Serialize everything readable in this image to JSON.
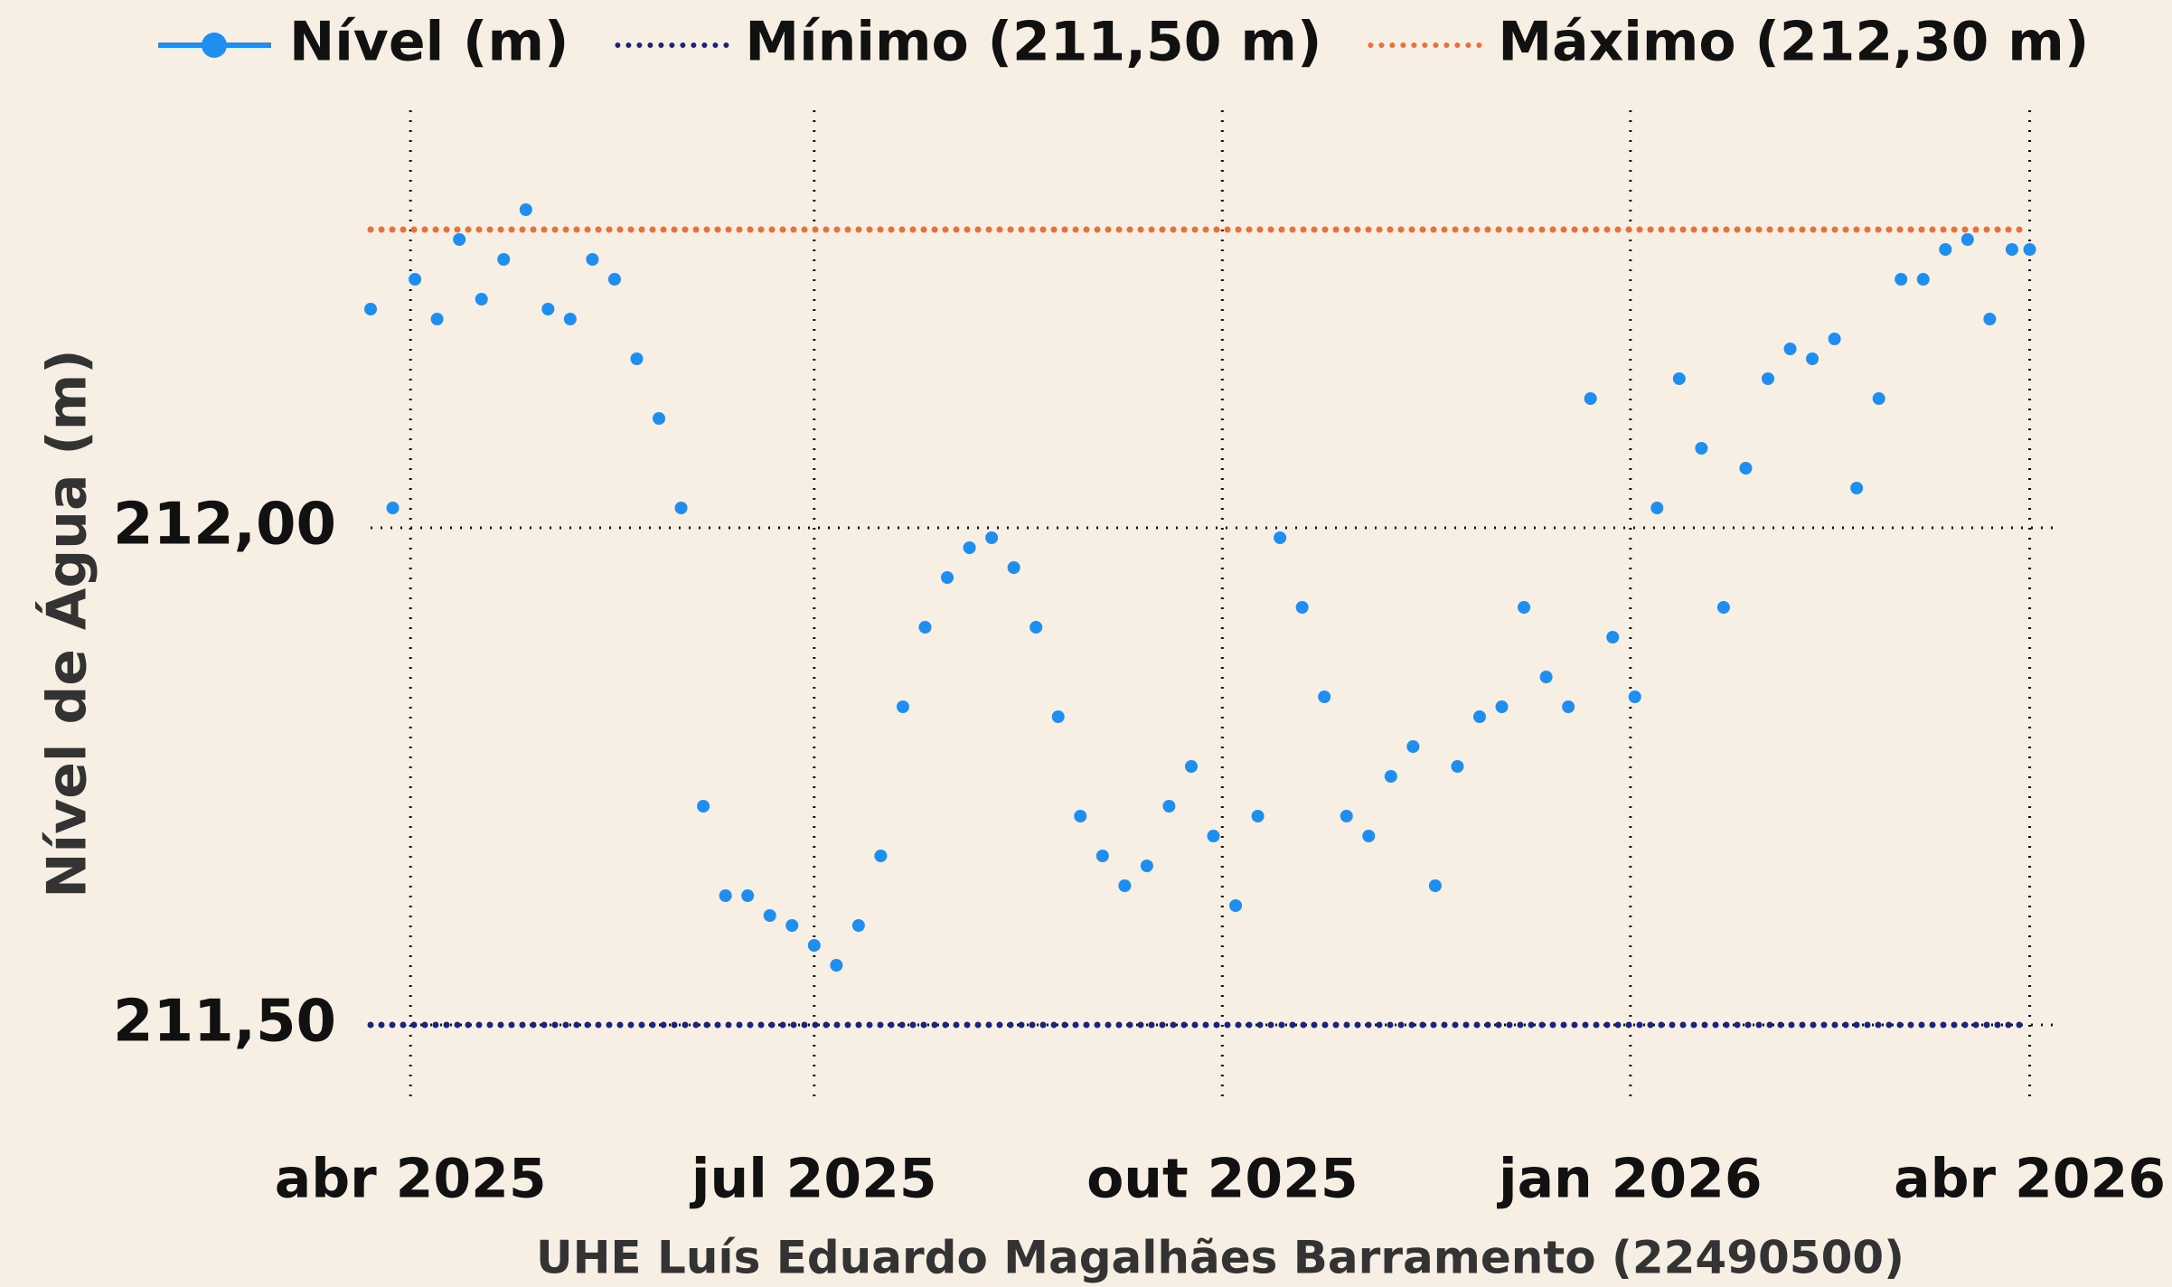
{
  "chart_data": {
    "type": "scatter",
    "x_label": "UHE Luís Eduardo Magalhães Barramento (22490500)",
    "y_label": "Nível de Água (m)",
    "xlim": [
      "2025-03-23",
      "2026-04-07"
    ],
    "ylim": [
      211.42,
      212.42
    ],
    "xticks": [
      {
        "value": "2025-04-01",
        "label": "abr 2025"
      },
      {
        "value": "2025-07-01",
        "label": "jul 2025"
      },
      {
        "value": "2025-10-01",
        "label": "out 2025"
      },
      {
        "value": "2026-01-01",
        "label": "jan 2026"
      },
      {
        "value": "2026-04-01",
        "label": "abr 2026"
      }
    ],
    "yticks": [
      {
        "value": 211.5,
        "label": "211,50"
      },
      {
        "value": 212,
        "label": "212,00"
      }
    ],
    "grid": true,
    "x": [
      "2025-03-23",
      "2025-03-28",
      "2025-04-02",
      "2025-04-07",
      "2025-04-12",
      "2025-04-17",
      "2025-04-22",
      "2025-04-27",
      "2025-05-02",
      "2025-05-07",
      "2025-05-12",
      "2025-05-17",
      "2025-05-22",
      "2025-05-27",
      "2025-06-01",
      "2025-06-06",
      "2025-06-11",
      "2025-06-16",
      "2025-06-21",
      "2025-06-26",
      "2025-07-01",
      "2025-07-06",
      "2025-07-11",
      "2025-07-16",
      "2025-07-21",
      "2025-07-26",
      "2025-07-31",
      "2025-08-05",
      "2025-08-10",
      "2025-08-15",
      "2025-08-20",
      "2025-08-25",
      "2025-08-30",
      "2025-09-04",
      "2025-09-09",
      "2025-09-14",
      "2025-09-19",
      "2025-09-24",
      "2025-09-29",
      "2025-10-04",
      "2025-10-09",
      "2025-10-14",
      "2025-10-19",
      "2025-10-24",
      "2025-10-29",
      "2025-11-03",
      "2025-11-08",
      "2025-11-13",
      "2025-11-18",
      "2025-11-23",
      "2025-11-28",
      "2025-12-03",
      "2025-12-08",
      "2025-12-13",
      "2025-12-18",
      "2025-12-23",
      "2025-12-28",
      "2026-01-02",
      "2026-01-07",
      "2026-01-12",
      "2026-01-17",
      "2026-01-22",
      "2026-01-27",
      "2026-02-01",
      "2026-02-06",
      "2026-02-11",
      "2026-02-16",
      "2026-02-21",
      "2026-02-26",
      "2026-03-03",
      "2026-03-08",
      "2026-03-13",
      "2026-03-18",
      "2026-03-23",
      "2026-03-28",
      "2026-04-01"
    ],
    "series": [
      {
        "name": "Nível (m)",
        "color": "#1e8ff0",
        "values": [
          212.22,
          212.02,
          212.25,
          212.21,
          212.29,
          212.23,
          212.27,
          212.32,
          212.22,
          212.21,
          212.27,
          212.25,
          212.17,
          212.11,
          212.02,
          211.72,
          211.63,
          211.63,
          211.61,
          211.6,
          211.58,
          211.56,
          211.6,
          211.67,
          211.82,
          211.9,
          211.95,
          211.98,
          211.99,
          211.96,
          211.9,
          211.81,
          211.71,
          211.67,
          211.64,
          211.66,
          211.72,
          211.76,
          211.69,
          211.62,
          211.71,
          211.99,
          211.92,
          211.83,
          211.71,
          211.69,
          211.75,
          211.78,
          211.64,
          211.76,
          211.81,
          211.82,
          211.92,
          211.85,
          211.82,
          212.13,
          211.89,
          211.83,
          212.02,
          212.15,
          212.08,
          211.92,
          212.06,
          212.15,
          212.18,
          212.17,
          212.19,
          212.04,
          212.13,
          212.25,
          212.25,
          212.28,
          212.29,
          212.21,
          212.28,
          212.28
        ]
      }
    ],
    "reference_lines": [
      {
        "name": "Mínimo (211,50 m)",
        "value": 211.5,
        "color": "#1a237e"
      },
      {
        "name": "Máximo (212,30 m)",
        "value": 212.3,
        "color": "#e8703a"
      }
    ]
  }
}
